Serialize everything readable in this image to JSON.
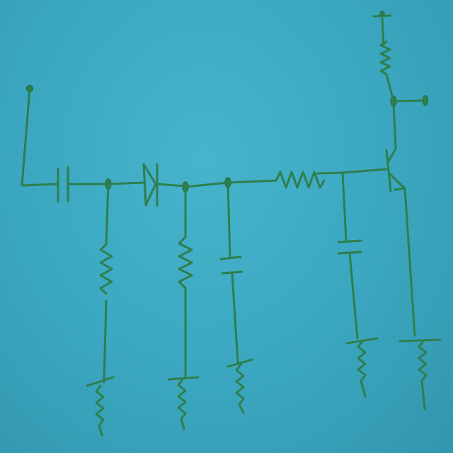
{
  "diagram": {
    "type": "hand-drawn circuit schematic",
    "colors": {
      "paper": "#3ba3bd",
      "ink": "#2e7f4e"
    },
    "components": [
      {
        "kind": "input-terminal"
      },
      {
        "kind": "capacitor",
        "role": "input coupling"
      },
      {
        "kind": "resistor",
        "role": "shunt to ground"
      },
      {
        "kind": "diode",
        "role": "detector"
      },
      {
        "kind": "resistor",
        "role": "load to ground"
      },
      {
        "kind": "capacitor",
        "role": "filter to ground"
      },
      {
        "kind": "resistor",
        "role": "base series"
      },
      {
        "kind": "capacitor",
        "role": "base bypass to ground"
      },
      {
        "kind": "npn-transistor"
      },
      {
        "kind": "resistor",
        "role": "collector supply"
      },
      {
        "kind": "output-terminal"
      },
      {
        "kind": "ground",
        "count": 5
      }
    ]
  }
}
